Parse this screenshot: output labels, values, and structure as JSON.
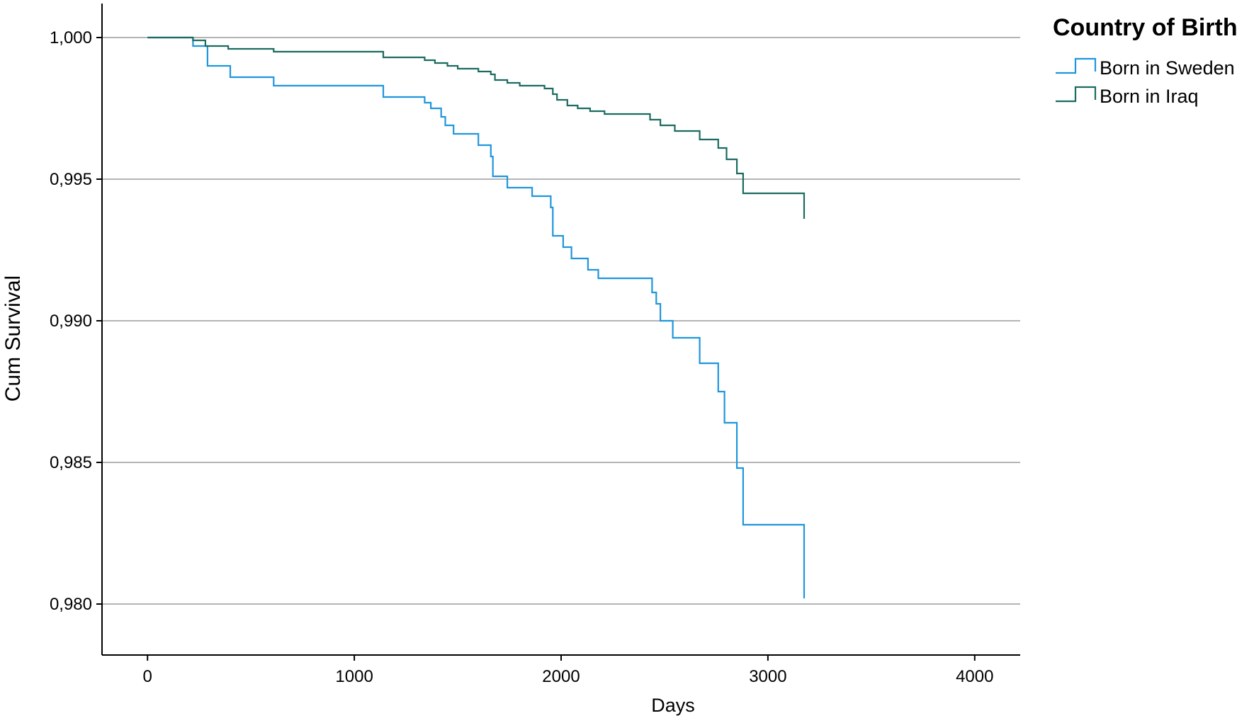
{
  "chart_data": {
    "type": "line",
    "step": true,
    "title": "",
    "xlabel": "Days",
    "ylabel": "Cum Survival",
    "xlim": [
      -220,
      4220
    ],
    "ylim": [
      0.9782,
      1.0012
    ],
    "x_ticks": [
      0,
      1000,
      2000,
      3000,
      4000
    ],
    "x_tick_labels": [
      "0",
      "1000",
      "2000",
      "3000",
      "4000"
    ],
    "y_ticks": [
      1.0,
      0.995,
      0.99,
      0.985,
      0.98
    ],
    "y_tick_labels": [
      "1,000",
      "0,995",
      "0,990",
      "0,985",
      "0,980"
    ],
    "grid": "horizontal",
    "legend": {
      "title": "Country of Birth",
      "position": "top-right"
    },
    "series": [
      {
        "name": "Born in Sweden",
        "color": "#1f96dc",
        "points": [
          [
            0,
            1.0
          ],
          [
            220,
            0.9997
          ],
          [
            290,
            0.999
          ],
          [
            400,
            0.9986
          ],
          [
            610,
            0.9983
          ],
          [
            1140,
            0.9979
          ],
          [
            1340,
            0.9977
          ],
          [
            1370,
            0.9975
          ],
          [
            1420,
            0.9972
          ],
          [
            1440,
            0.9969
          ],
          [
            1480,
            0.9966
          ],
          [
            1600,
            0.9962
          ],
          [
            1660,
            0.9958
          ],
          [
            1670,
            0.9951
          ],
          [
            1740,
            0.9947
          ],
          [
            1860,
            0.9944
          ],
          [
            1950,
            0.994
          ],
          [
            1960,
            0.993
          ],
          [
            2010,
            0.9926
          ],
          [
            2050,
            0.9922
          ],
          [
            2130,
            0.9918
          ],
          [
            2180,
            0.9915
          ],
          [
            2440,
            0.991
          ],
          [
            2460,
            0.9906
          ],
          [
            2480,
            0.99
          ],
          [
            2540,
            0.9894
          ],
          [
            2670,
            0.9885
          ],
          [
            2760,
            0.9875
          ],
          [
            2790,
            0.9864
          ],
          [
            2850,
            0.9848
          ],
          [
            2880,
            0.9828
          ],
          [
            3175,
            0.9802
          ]
        ]
      },
      {
        "name": "Born in Iraq",
        "color": "#1b6b60",
        "points": [
          [
            0,
            1.0
          ],
          [
            220,
            0.9999
          ],
          [
            280,
            0.9997
          ],
          [
            390,
            0.9996
          ],
          [
            610,
            0.9995
          ],
          [
            1140,
            0.9993
          ],
          [
            1340,
            0.9992
          ],
          [
            1390,
            0.9991
          ],
          [
            1450,
            0.999
          ],
          [
            1500,
            0.9989
          ],
          [
            1600,
            0.9988
          ],
          [
            1660,
            0.9987
          ],
          [
            1680,
            0.9985
          ],
          [
            1740,
            0.9984
          ],
          [
            1800,
            0.9983
          ],
          [
            1920,
            0.9982
          ],
          [
            1960,
            0.998
          ],
          [
            1980,
            0.9978
          ],
          [
            2030,
            0.9976
          ],
          [
            2080,
            0.9975
          ],
          [
            2140,
            0.9974
          ],
          [
            2210,
            0.9973
          ],
          [
            2430,
            0.9971
          ],
          [
            2480,
            0.9969
          ],
          [
            2550,
            0.9967
          ],
          [
            2670,
            0.9964
          ],
          [
            2760,
            0.9961
          ],
          [
            2800,
            0.9957
          ],
          [
            2850,
            0.9952
          ],
          [
            2880,
            0.9945
          ],
          [
            3175,
            0.9936
          ]
        ]
      }
    ]
  }
}
